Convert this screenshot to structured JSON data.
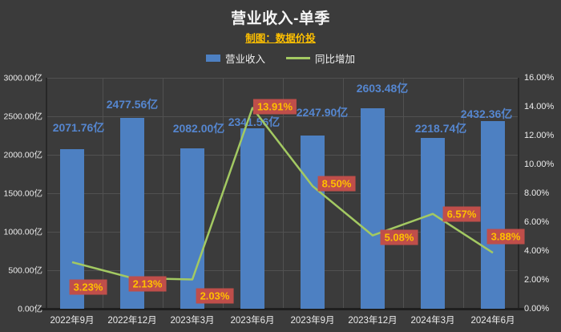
{
  "title": "营业收入-单季",
  "subtitle": "制图：数据价投",
  "legend": {
    "items": [
      {
        "label": "营业收入",
        "type": "bar"
      },
      {
        "label": "同比增加",
        "type": "line"
      }
    ]
  },
  "colors": {
    "background": "#3b3b3b",
    "bar": "#4d80c2",
    "bar_label": "#5586cf",
    "line": "#a3c962",
    "pct_box_bg": "#bf4e4a",
    "pct_box_text": "#ffc000",
    "subtitle": "#ffc000",
    "grid": "#515151",
    "axis": "#272727",
    "text": "#f2f2f2"
  },
  "chart_data": {
    "type": "bar",
    "title": "营业收入-单季",
    "subtitle": "制图：数据价投",
    "categories": [
      "2022年9月",
      "2022年12月",
      "2023年3月",
      "2023年6月",
      "2023年9月",
      "2023年12月",
      "2024年3月",
      "2024年6月"
    ],
    "series": [
      {
        "name": "营业收入",
        "type": "bar",
        "axis": "left",
        "unit": "亿",
        "values": [
          2071.76,
          2477.56,
          2082.0,
          2341.56,
          2247.9,
          2603.48,
          2218.74,
          2432.36
        ],
        "labels": [
          "2071.76亿",
          "2477.56亿",
          "2082.00亿",
          "2341.56亿",
          "2247.90亿",
          "2603.48亿",
          "2218.74亿",
          "2432.36亿"
        ]
      },
      {
        "name": "同比增加",
        "type": "line",
        "axis": "right",
        "unit": "%",
        "values": [
          3.23,
          2.13,
          2.03,
          13.91,
          8.5,
          5.08,
          6.57,
          3.88
        ],
        "labels": [
          "3.23%",
          "2.13%",
          "2.03%",
          "13.91%",
          "8.50%",
          "5.08%",
          "6.57%",
          "3.88%"
        ]
      }
    ],
    "left_axis": {
      "min": 0,
      "max": 3000,
      "step": 500,
      "ticks": [
        "3000.00亿",
        "2500.00亿",
        "2000.00亿",
        "1500.00亿",
        "1000.00亿",
        "500.00亿",
        "0.00亿"
      ]
    },
    "right_axis": {
      "min": 0,
      "max": 16,
      "step": 2,
      "ticks": [
        "16.00%",
        "14.00%",
        "12.00%",
        "10.00%",
        "8.00%",
        "6.00%",
        "4.00%",
        "2.00%",
        "0.00%"
      ]
    },
    "grid": true,
    "legend_position": "top"
  }
}
